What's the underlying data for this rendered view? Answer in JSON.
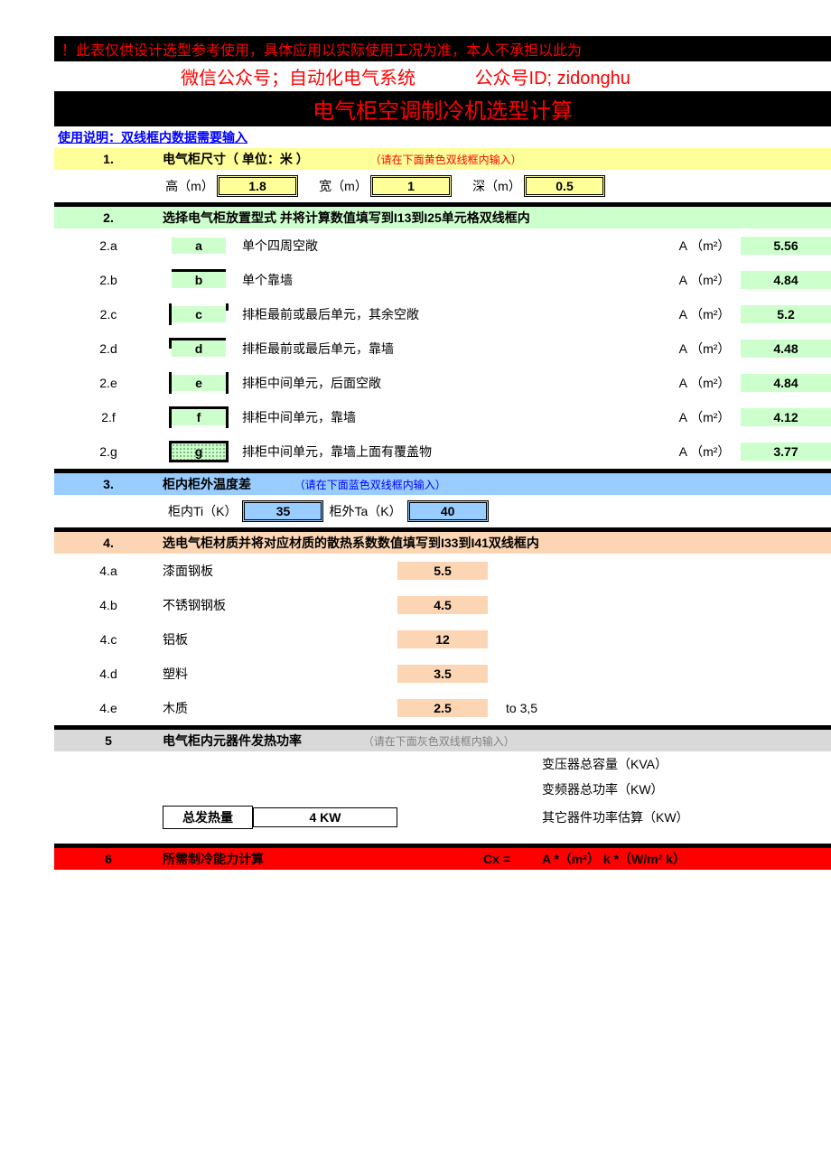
{
  "colors": {
    "black": "#000000",
    "red": "#ff0000",
    "blue": "#0000ff",
    "yellow_fill": "#ffff99",
    "green_fill": "#ccffcc",
    "blue_fill": "#99ccff",
    "orange_fill": "#fcd5b4",
    "gray_fill": "#d9d9d9",
    "red_fill": "#ff0000"
  },
  "warning": "！此表仅供设计选型参考使用，具体应用以实际使用工况为准，本人不承担以此为",
  "wechat": {
    "label": "微信公众号；自动化电气系统",
    "id_label": "公众号ID; zidonghu"
  },
  "main_title": "电气柜空调制冷机选型计算",
  "usage_note": "使用说明：双线框内数据需要输入",
  "section1": {
    "num": "1.",
    "title": "电气柜尺寸（ 单位：米 ）",
    "hint": "（请在下面黄色双线框内输入）",
    "h_label": "高（m）",
    "h_value": "1.8",
    "w_label": "宽（m）",
    "w_value": "1",
    "d_label": "深（m）",
    "d_value": "0.5"
  },
  "section2": {
    "num": "2.",
    "title": "选择电气柜放置型式   并将计算数值填写到I13到I25单元格双线框内",
    "a_unit": "A （m²）",
    "rows": [
      {
        "idx": "2.a",
        "letter": "a",
        "edges": [],
        "desc": "单个四周空敞",
        "value": "5.56"
      },
      {
        "idx": "2.b",
        "letter": "b",
        "edges": [
          "top"
        ],
        "desc": "单个靠墙",
        "value": "4.84"
      },
      {
        "idx": "2.c",
        "letter": "c",
        "edges": [
          "left",
          "right-notch"
        ],
        "desc": "排柜最前或最后单元，其余空敞",
        "value": "5.2"
      },
      {
        "idx": "2.d",
        "letter": "d",
        "edges": [
          "top",
          "left-half"
        ],
        "desc": "排柜最前或最后单元，靠墙",
        "value": "4.48"
      },
      {
        "idx": "2.e",
        "letter": "e",
        "edges": [
          "left",
          "right"
        ],
        "desc": "排柜中间单元，后面空敞",
        "value": "4.84"
      },
      {
        "idx": "2.f",
        "letter": "f",
        "edges": [
          "top",
          "left",
          "right"
        ],
        "desc": "排柜中间单元，靠墙",
        "value": "4.12"
      },
      {
        "idx": "2.g",
        "letter": "g",
        "edges": [
          "top",
          "left",
          "right",
          "bot"
        ],
        "desc": "排柜中间单元，靠墙上面有覆盖物",
        "value": "3.77",
        "dotted": true
      }
    ]
  },
  "section3": {
    "num": "3.",
    "title": "柜内柜外温度差",
    "hint": "（请在下面蓝色双线框内输入）",
    "ti_label": "柜内Ti（K）",
    "ti_value": "35",
    "ta_label": "柜外Ta（K）",
    "ta_value": "40"
  },
  "section4": {
    "num": "4.",
    "title": "选电气柜材质并将对应材质的散热系数数值填写到I33到I41双线框内",
    "rows": [
      {
        "idx": "4.a",
        "name": "漆面钢板",
        "value": "5.5",
        "extra": ""
      },
      {
        "idx": "4.b",
        "name": "不锈钢钢板",
        "value": "4.5",
        "extra": ""
      },
      {
        "idx": "4.c",
        "name": "铝板",
        "value": "12",
        "extra": ""
      },
      {
        "idx": "4.d",
        "name": "塑料",
        "value": "3.5",
        "extra": ""
      },
      {
        "idx": "4.e",
        "name": "木质",
        "value": "2.5",
        "extra": "to 3,5"
      }
    ]
  },
  "section5": {
    "num": "5",
    "title": "电气柜内元器件发热功率",
    "hint": "（请在下面灰色双线框内输入）",
    "right_lines": [
      "变压器总容量（KVA）",
      "变频器总功率（KW）",
      "其它器件功率估算（KW）"
    ],
    "total_label": "总发热量",
    "total_value": "4 KW"
  },
  "section6": {
    "num": "6",
    "title": "所需制冷能力计算",
    "cx": "Cx =",
    "formula": "A *（m²）   k *（W/m² k）"
  }
}
